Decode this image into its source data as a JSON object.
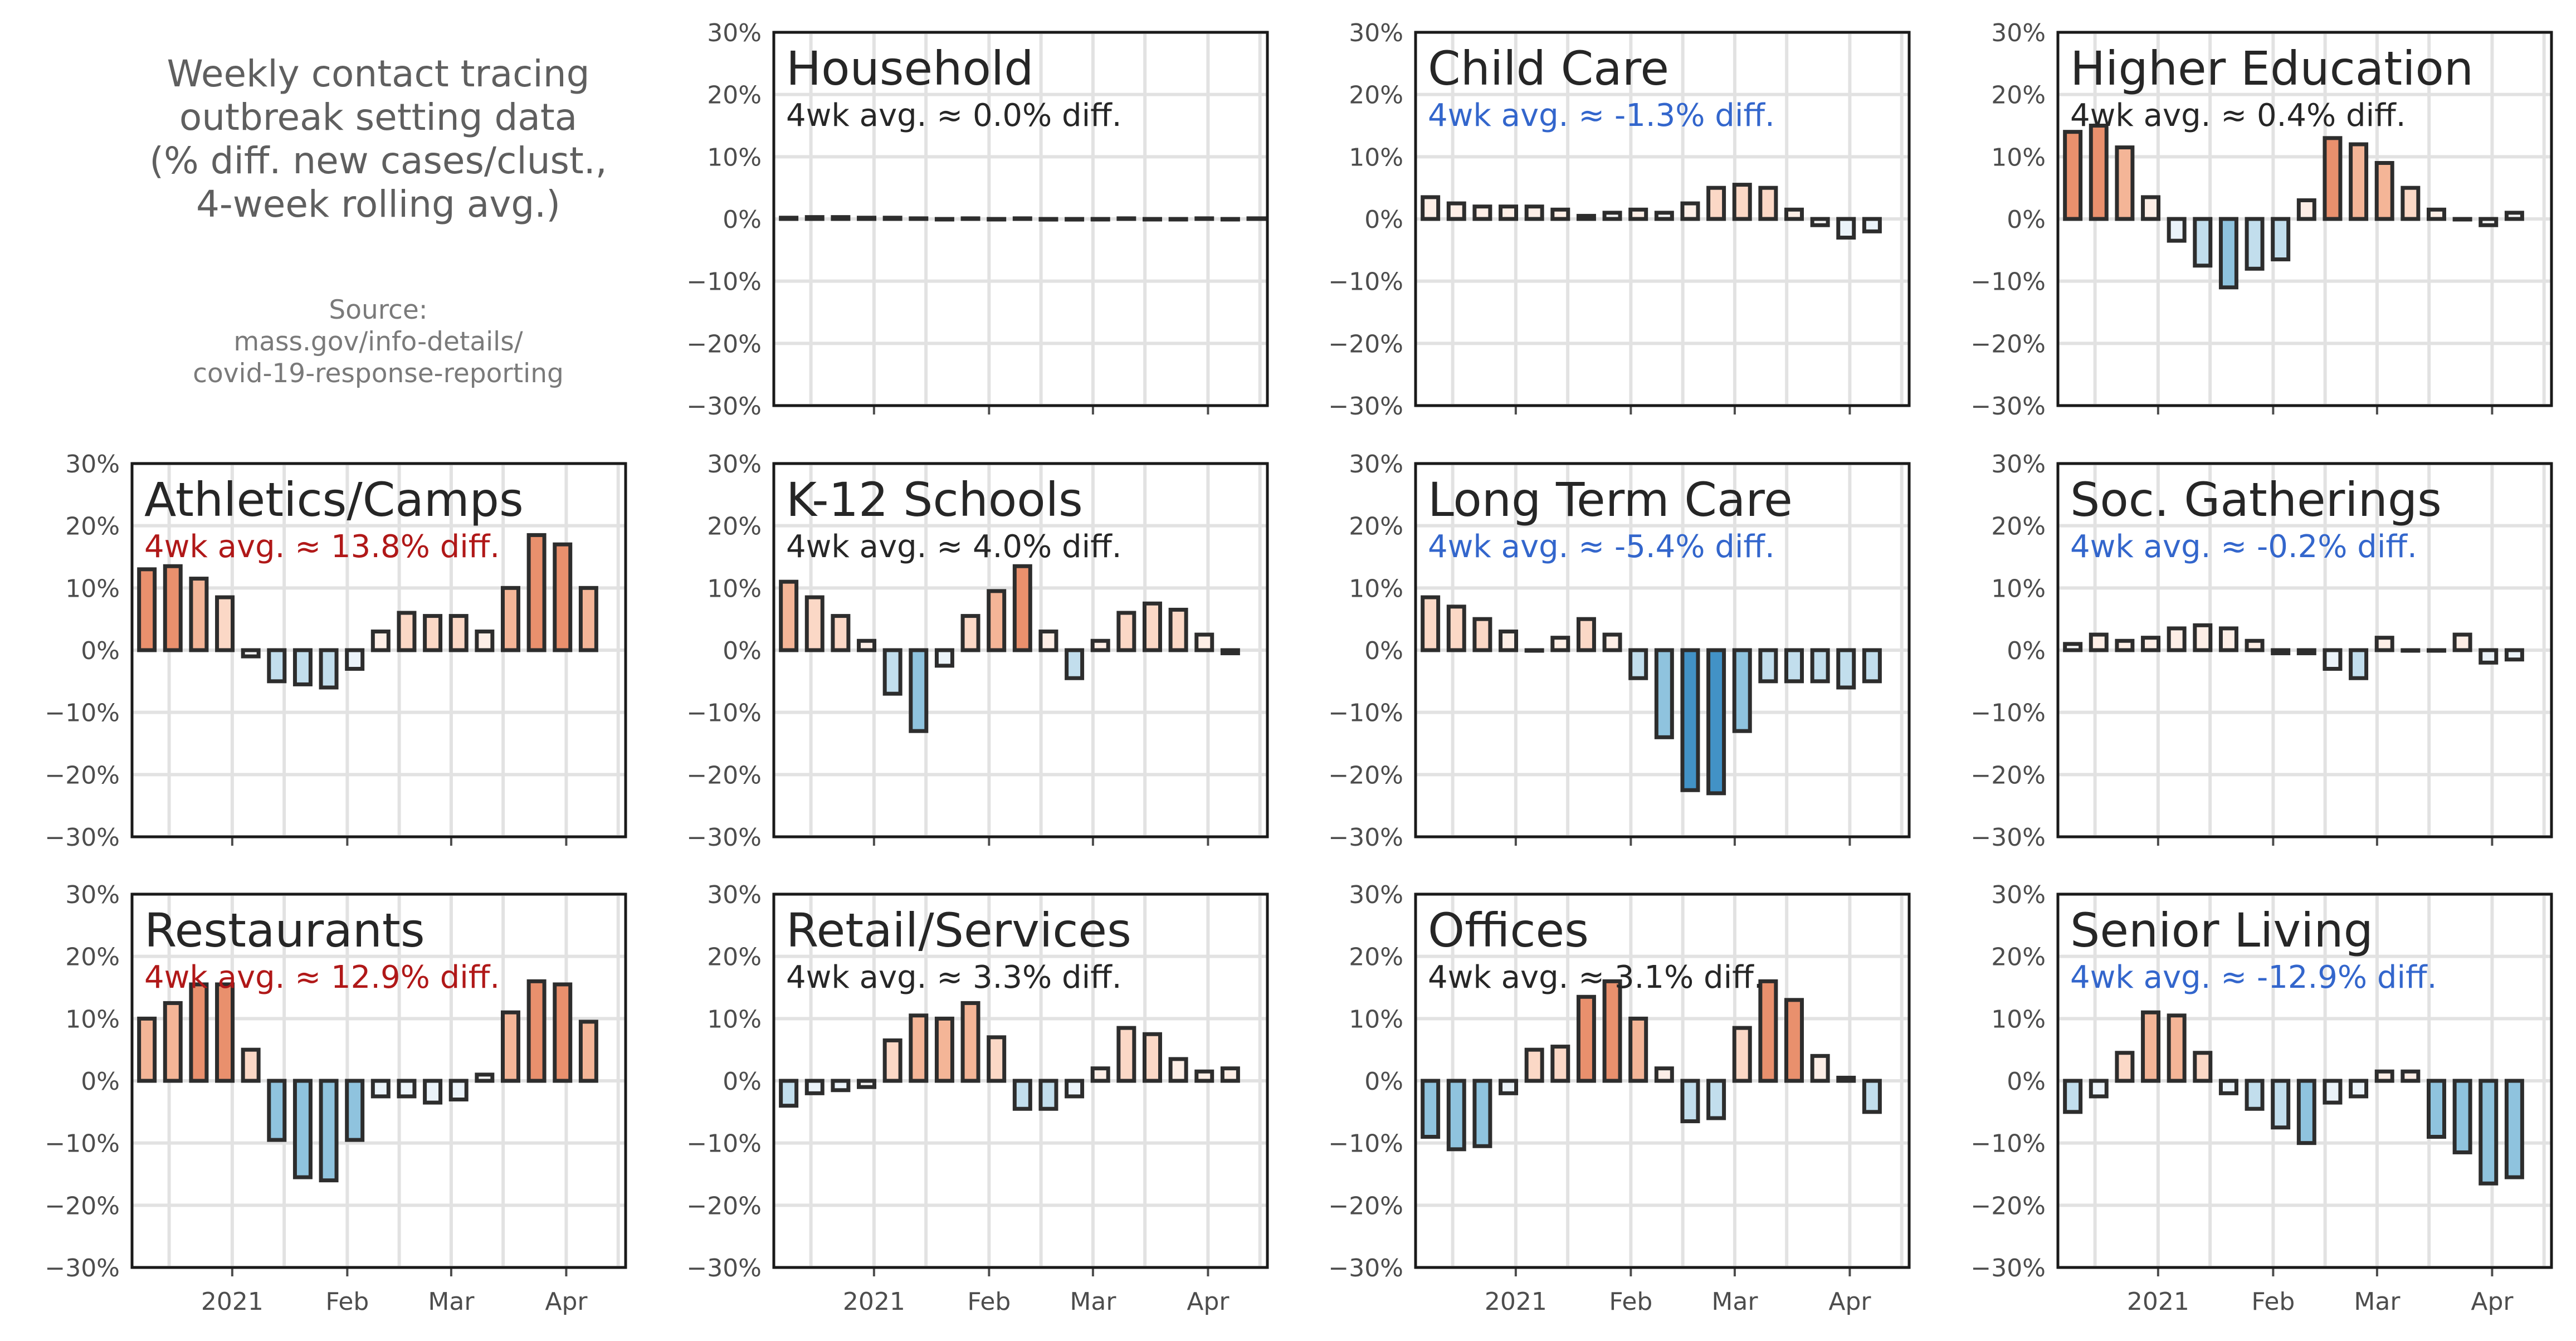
{
  "intro": {
    "title_lines": [
      "Weekly contact tracing",
      "outbreak setting data",
      "(% diff. new cases/clust.,",
      "4-week rolling avg.)"
    ],
    "source_lines": [
      "Source:",
      "mass.gov/info-details/",
      "covid-19-response-reporting"
    ]
  },
  "colors": {
    "strong_pos": "#e9906d",
    "mid_pos": "#f4b597",
    "light_pos": "#fbd8c6",
    "faint_pos": "#fdeee6",
    "faint_neg": "#ebf3f9",
    "light_neg": "#c2deed",
    "mid_neg": "#8fc3de",
    "strong_neg": "#4292c6",
    "neutral": "#f7f7f7",
    "edge": "#2d2d2d",
    "avg_pos": "#b01818",
    "avg_neg": "#3366cc",
    "avg_neutral": "#262626"
  },
  "chart_data": [
    {
      "type": "bar",
      "title": "Household",
      "avg_label": "4wk avg. ≈ 0.0% diff.",
      "avg_value": 0.0,
      "x": [
        "2020-12-09",
        "2020-12-16",
        "2020-12-23",
        "2020-12-30",
        "2021-01-06",
        "2021-01-13",
        "2021-01-20",
        "2021-01-27",
        "2021-02-03",
        "2021-02-10",
        "2021-02-17",
        "2021-02-24",
        "2021-03-03",
        "2021-03-10",
        "2021-03-17",
        "2021-03-24",
        "2021-03-31",
        "2021-04-07",
        "2021-04-14"
      ],
      "values": [
        0.2,
        0.3,
        0.3,
        0.2,
        0.2,
        0.1,
        0.0,
        0.1,
        0.0,
        0.1,
        -0.1,
        -0.1,
        0.0,
        0.1,
        0.0,
        0.0,
        0.1,
        0.0,
        0.1
      ],
      "ylim": [
        -30,
        30
      ],
      "yticks": [
        "−30%",
        "−20%",
        "−10%",
        "0%",
        "10%",
        "20%",
        "30%"
      ],
      "xticks": [
        "2021",
        "Feb",
        "Mar",
        "Apr"
      ],
      "show_xticklabels": false
    },
    {
      "type": "bar",
      "title": "Child Care",
      "avg_label": "4wk avg. ≈ -1.3% diff.",
      "avg_value": -1.3,
      "x": [
        "2020-12-09",
        "2020-12-16",
        "2020-12-23",
        "2020-12-30",
        "2021-01-06",
        "2021-01-13",
        "2021-01-20",
        "2021-01-27",
        "2021-02-03",
        "2021-02-10",
        "2021-02-17",
        "2021-02-24",
        "2021-03-03",
        "2021-03-10",
        "2021-03-17",
        "2021-03-24",
        "2021-03-31",
        "2021-04-07",
        "2021-04-14"
      ],
      "values": [
        3.5,
        2.5,
        2.0,
        2.0,
        2.0,
        1.5,
        0.5,
        1.0,
        1.5,
        1.0,
        2.5,
        5.0,
        5.5,
        5.0,
        1.5,
        -1.0,
        -3.0,
        -2.0,
        null
      ],
      "ylim": [
        -30,
        30
      ],
      "yticks": [
        "−30%",
        "−20%",
        "−10%",
        "0%",
        "10%",
        "20%",
        "30%"
      ],
      "xticks": [
        "2021",
        "Feb",
        "Mar",
        "Apr"
      ],
      "show_xticklabels": false
    },
    {
      "type": "bar",
      "title": "Higher Education",
      "avg_label": "4wk avg. ≈ 0.4% diff.",
      "avg_value": 0.4,
      "x": [
        "2020-12-09",
        "2020-12-16",
        "2020-12-23",
        "2020-12-30",
        "2021-01-06",
        "2021-01-13",
        "2021-01-20",
        "2021-01-27",
        "2021-02-03",
        "2021-02-10",
        "2021-02-17",
        "2021-02-24",
        "2021-03-03",
        "2021-03-10",
        "2021-03-17",
        "2021-03-24",
        "2021-03-31",
        "2021-04-07",
        "2021-04-14"
      ],
      "values": [
        14.0,
        15.0,
        11.5,
        3.5,
        -3.5,
        -7.5,
        -11.0,
        -8.0,
        -6.5,
        3.0,
        13.0,
        12.0,
        9.0,
        5.0,
        1.5,
        0.0,
        -1.0,
        1.0,
        null
      ],
      "ylim": [
        -30,
        30
      ],
      "yticks": [
        "−30%",
        "−20%",
        "−10%",
        "0%",
        "10%",
        "20%",
        "30%"
      ],
      "xticks": [
        "2021",
        "Feb",
        "Mar",
        "Apr"
      ],
      "show_xticklabels": false
    },
    {
      "type": "bar",
      "title": "Athletics/Camps",
      "avg_label": "4wk avg. ≈ 13.8% diff.",
      "avg_value": 13.8,
      "x": [
        "2020-12-09",
        "2020-12-16",
        "2020-12-23",
        "2020-12-30",
        "2021-01-06",
        "2021-01-13",
        "2021-01-20",
        "2021-01-27",
        "2021-02-03",
        "2021-02-10",
        "2021-02-17",
        "2021-02-24",
        "2021-03-03",
        "2021-03-10",
        "2021-03-17",
        "2021-03-24",
        "2021-03-31",
        "2021-04-07",
        "2021-04-14"
      ],
      "values": [
        13.0,
        13.5,
        11.5,
        8.5,
        -1.0,
        -5.0,
        -5.5,
        -6.0,
        -3.0,
        3.0,
        6.0,
        5.5,
        5.5,
        3.0,
        10.0,
        18.5,
        17.0,
        10.0,
        null
      ],
      "ylim": [
        -30,
        30
      ],
      "yticks": [
        "−30%",
        "−20%",
        "−10%",
        "0%",
        "10%",
        "20%",
        "30%"
      ],
      "xticks": [
        "2021",
        "Feb",
        "Mar",
        "Apr"
      ],
      "show_xticklabels": false
    },
    {
      "type": "bar",
      "title": "K-12 Schools",
      "avg_label": "4wk avg. ≈ 4.0% diff.",
      "avg_value": 4.0,
      "x": [
        "2020-12-09",
        "2020-12-16",
        "2020-12-23",
        "2020-12-30",
        "2021-01-06",
        "2021-01-13",
        "2021-01-20",
        "2021-01-27",
        "2021-02-03",
        "2021-02-10",
        "2021-02-17",
        "2021-02-24",
        "2021-03-03",
        "2021-03-10",
        "2021-03-17",
        "2021-03-24",
        "2021-03-31",
        "2021-04-07",
        "2021-04-14"
      ],
      "values": [
        11.0,
        8.5,
        5.5,
        1.5,
        -7.0,
        -13.0,
        -2.5,
        5.5,
        9.5,
        13.5,
        3.0,
        -4.5,
        1.5,
        6.0,
        7.5,
        6.5,
        2.5,
        -0.5,
        null
      ],
      "ylim": [
        -30,
        30
      ],
      "yticks": [
        "−30%",
        "−20%",
        "−10%",
        "0%",
        "10%",
        "20%",
        "30%"
      ],
      "xticks": [
        "2021",
        "Feb",
        "Mar",
        "Apr"
      ],
      "show_xticklabels": false
    },
    {
      "type": "bar",
      "title": "Long Term Care",
      "avg_label": "4wk avg. ≈ -5.4% diff.",
      "avg_value": -5.4,
      "x": [
        "2020-12-09",
        "2020-12-16",
        "2020-12-23",
        "2020-12-30",
        "2021-01-06",
        "2021-01-13",
        "2021-01-20",
        "2021-01-27",
        "2021-02-03",
        "2021-02-10",
        "2021-02-17",
        "2021-02-24",
        "2021-03-03",
        "2021-03-10",
        "2021-03-17",
        "2021-03-24",
        "2021-03-31",
        "2021-04-07",
        "2021-04-14"
      ],
      "values": [
        8.5,
        7.0,
        5.0,
        3.0,
        0.0,
        2.0,
        5.0,
        2.5,
        -4.5,
        -14.0,
        -22.5,
        -23.0,
        -13.0,
        -5.0,
        -5.0,
        -5.0,
        -6.0,
        -5.0,
        null
      ],
      "ylim": [
        -30,
        30
      ],
      "yticks": [
        "−30%",
        "−20%",
        "−10%",
        "0%",
        "10%",
        "20%",
        "30%"
      ],
      "xticks": [
        "2021",
        "Feb",
        "Mar",
        "Apr"
      ],
      "show_xticklabels": false
    },
    {
      "type": "bar",
      "title": "Soc. Gatherings",
      "avg_label": "4wk avg. ≈ -0.2% diff.",
      "avg_value": -0.2,
      "x": [
        "2020-12-09",
        "2020-12-16",
        "2020-12-23",
        "2020-12-30",
        "2021-01-06",
        "2021-01-13",
        "2021-01-20",
        "2021-01-27",
        "2021-02-03",
        "2021-02-10",
        "2021-02-17",
        "2021-02-24",
        "2021-03-03",
        "2021-03-10",
        "2021-03-17",
        "2021-03-24",
        "2021-03-31",
        "2021-04-07",
        "2021-04-14"
      ],
      "values": [
        1.0,
        2.5,
        1.5,
        2.0,
        3.5,
        4.0,
        3.5,
        1.5,
        -0.5,
        -0.5,
        -3.0,
        -4.5,
        2.0,
        0.0,
        0.0,
        2.5,
        -2.0,
        -1.5,
        null
      ],
      "ylim": [
        -30,
        30
      ],
      "yticks": [
        "−30%",
        "−20%",
        "−10%",
        "0%",
        "10%",
        "20%",
        "30%"
      ],
      "xticks": [
        "2021",
        "Feb",
        "Mar",
        "Apr"
      ],
      "show_xticklabels": false
    },
    {
      "type": "bar",
      "title": "Restaurants",
      "avg_label": "4wk avg. ≈ 12.9% diff.",
      "avg_value": 12.9,
      "x": [
        "2020-12-09",
        "2020-12-16",
        "2020-12-23",
        "2020-12-30",
        "2021-01-06",
        "2021-01-13",
        "2021-01-20",
        "2021-01-27",
        "2021-02-03",
        "2021-02-10",
        "2021-02-17",
        "2021-02-24",
        "2021-03-03",
        "2021-03-10",
        "2021-03-17",
        "2021-03-24",
        "2021-03-31",
        "2021-04-07",
        "2021-04-14"
      ],
      "values": [
        10.0,
        12.5,
        15.5,
        15.5,
        5.0,
        -9.5,
        -15.5,
        -16.0,
        -9.5,
        -2.5,
        -2.5,
        -3.5,
        -3.0,
        1.0,
        11.0,
        16.0,
        15.5,
        9.5,
        null
      ],
      "ylim": [
        -30,
        30
      ],
      "yticks": [
        "−30%",
        "−20%",
        "−10%",
        "0%",
        "10%",
        "20%",
        "30%"
      ],
      "xticks": [
        "2021",
        "Feb",
        "Mar",
        "Apr"
      ],
      "show_xticklabels": true
    },
    {
      "type": "bar",
      "title": "Retail/Services",
      "avg_label": "4wk avg. ≈ 3.3% diff.",
      "avg_value": 3.3,
      "x": [
        "2020-12-09",
        "2020-12-16",
        "2020-12-23",
        "2020-12-30",
        "2021-01-06",
        "2021-01-13",
        "2021-01-20",
        "2021-01-27",
        "2021-02-03",
        "2021-02-10",
        "2021-02-17",
        "2021-02-24",
        "2021-03-03",
        "2021-03-10",
        "2021-03-17",
        "2021-03-24",
        "2021-03-31",
        "2021-04-07",
        "2021-04-14"
      ],
      "values": [
        -4.0,
        -2.0,
        -1.5,
        -1.0,
        6.5,
        10.5,
        10.0,
        12.5,
        7.0,
        -4.5,
        -4.5,
        -2.5,
        2.0,
        8.5,
        7.5,
        3.5,
        1.5,
        2.0,
        null
      ],
      "ylim": [
        -30,
        30
      ],
      "yticks": [
        "−30%",
        "−20%",
        "−10%",
        "0%",
        "10%",
        "20%",
        "30%"
      ],
      "xticks": [
        "2021",
        "Feb",
        "Mar",
        "Apr"
      ],
      "show_xticklabels": true
    },
    {
      "type": "bar",
      "title": "Offices",
      "avg_label": "4wk avg. ≈ 3.1% diff.",
      "avg_value": 3.1,
      "x": [
        "2020-12-09",
        "2020-12-16",
        "2020-12-23",
        "2020-12-30",
        "2021-01-06",
        "2021-01-13",
        "2021-01-20",
        "2021-01-27",
        "2021-02-03",
        "2021-02-10",
        "2021-02-17",
        "2021-02-24",
        "2021-03-03",
        "2021-03-10",
        "2021-03-17",
        "2021-03-24",
        "2021-03-31",
        "2021-04-07",
        "2021-04-14"
      ],
      "values": [
        -9.0,
        -11.0,
        -10.5,
        -2.0,
        5.0,
        5.5,
        13.5,
        16.0,
        10.0,
        2.0,
        -6.5,
        -6.0,
        8.5,
        16.0,
        13.0,
        4.0,
        0.5,
        -5.0,
        null
      ],
      "ylim": [
        -30,
        30
      ],
      "yticks": [
        "−30%",
        "−20%",
        "−10%",
        "0%",
        "10%",
        "20%",
        "30%"
      ],
      "xticks": [
        "2021",
        "Feb",
        "Mar",
        "Apr"
      ],
      "show_xticklabels": true
    },
    {
      "type": "bar",
      "title": "Senior Living",
      "avg_label": "4wk avg. ≈ -12.9% diff.",
      "avg_value": -12.9,
      "x": [
        "2020-12-09",
        "2020-12-16",
        "2020-12-23",
        "2020-12-30",
        "2021-01-06",
        "2021-01-13",
        "2021-01-20",
        "2021-01-27",
        "2021-02-03",
        "2021-02-10",
        "2021-02-17",
        "2021-02-24",
        "2021-03-03",
        "2021-03-10",
        "2021-03-17",
        "2021-03-24",
        "2021-03-31",
        "2021-04-07",
        "2021-04-14"
      ],
      "values": [
        -5.0,
        -2.5,
        4.5,
        11.0,
        10.5,
        4.5,
        -2.0,
        -4.5,
        -7.5,
        -10.0,
        -3.5,
        -2.5,
        1.5,
        1.5,
        -9.0,
        -11.5,
        -16.5,
        -15.5,
        null
      ],
      "ylim": [
        -30,
        30
      ],
      "yticks": [
        "−30%",
        "−20%",
        "−10%",
        "0%",
        "10%",
        "20%",
        "30%"
      ],
      "xticks": [
        "2021",
        "Feb",
        "Mar",
        "Apr"
      ],
      "show_xticklabels": true
    }
  ]
}
